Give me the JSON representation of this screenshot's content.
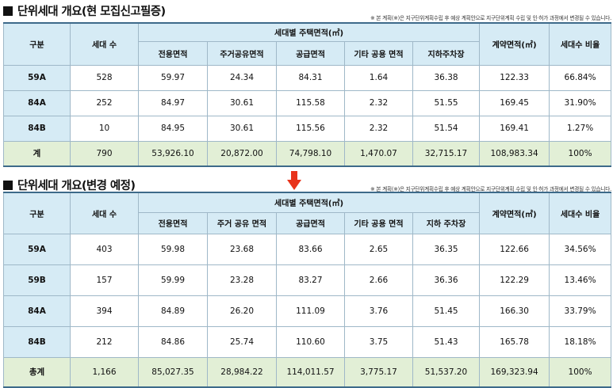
{
  "table1": {
    "title": "단위세대 개요(현 모집신고필증)",
    "note": "※ 본 계획(※)은 지구단위계획수립 후 예상 계획안으로 지구단위계획 수립 및 인·허가 과정에서 변경될 수 있습니다.",
    "headers": {
      "type": "구분",
      "units": "세대 수",
      "group": "세대별 주택면적(㎡)",
      "exclusive": "전용면적",
      "residential_common": "주거공유면적",
      "supply": "공급면적",
      "other_common": "기타 공용 면적",
      "parking": "지하주차장",
      "contract": "계약면적(㎡)",
      "ratio": "세대수 비율"
    },
    "rows": [
      {
        "type": "59A",
        "units": "528",
        "exclusive": "59.97",
        "residential_common": "24.34",
        "supply": "84.31",
        "other_common": "1.64",
        "parking": "36.38",
        "contract": "122.33",
        "ratio": "66.84%"
      },
      {
        "type": "84A",
        "units": "252",
        "exclusive": "84.97",
        "residential_common": "30.61",
        "supply": "115.58",
        "other_common": "2.32",
        "parking": "51.55",
        "contract": "169.45",
        "ratio": "31.90%"
      },
      {
        "type": "84B",
        "units": "10",
        "exclusive": "84.95",
        "residential_common": "30.61",
        "supply": "115.56",
        "other_common": "2.32",
        "parking": "51.54",
        "contract": "169.41",
        "ratio": "1.27%"
      }
    ],
    "total": {
      "type": "계",
      "units": "790",
      "exclusive": "53,926.10",
      "residential_common": "20,872.00",
      "supply": "74,798.10",
      "other_common": "1,470.07",
      "parking": "32,715.17",
      "contract": "108,983.34",
      "ratio": "100%"
    }
  },
  "arrow": {
    "icon": "down-arrow-icon",
    "color": "#e8331b"
  },
  "table2": {
    "title": "단위세대 개요(변경 예정)",
    "note": "※ 본 계획(※)은 지구단위계획수립 후 예상 계획안으로 지구단위계획 수립 및 인·허가 과정에서 변경될 수 있습니다.",
    "headers": {
      "type": "구분",
      "units": "세대 수",
      "group": "세대별 주택면적(㎡)",
      "exclusive": "전용면적",
      "residential_common": "주거 공유 면적",
      "supply": "공급면적",
      "other_common": "기타 공용 면적",
      "parking": "지하 주차장",
      "contract": "계약면적(㎡)",
      "ratio": "세대수 비율"
    },
    "rows": [
      {
        "type": "59A",
        "units": "403",
        "exclusive": "59.98",
        "residential_common": "23.68",
        "supply": "83.66",
        "other_common": "2.65",
        "parking": "36.35",
        "contract": "122.66",
        "ratio": "34.56%"
      },
      {
        "type": "59B",
        "units": "157",
        "exclusive": "59.99",
        "residential_common": "23.28",
        "supply": "83.27",
        "other_common": "2.66",
        "parking": "36.36",
        "contract": "122.29",
        "ratio": "13.46%"
      },
      {
        "type": "84A",
        "units": "394",
        "exclusive": "84.89",
        "residential_common": "26.20",
        "supply": "111.09",
        "other_common": "3.76",
        "parking": "51.45",
        "contract": "166.30",
        "ratio": "33.79%"
      },
      {
        "type": "84B",
        "units": "212",
        "exclusive": "84.86",
        "residential_common": "25.74",
        "supply": "110.60",
        "other_common": "3.75",
        "parking": "51.43",
        "contract": "165.78",
        "ratio": "18.18%"
      }
    ],
    "total": {
      "type": "총계",
      "units": "1,166",
      "exclusive": "85,027.35",
      "residential_common": "28,984.22",
      "supply": "114,011.57",
      "other_common": "3,775.17",
      "parking": "51,537.20",
      "contract": "169,323.94",
      "ratio": "100%"
    }
  }
}
